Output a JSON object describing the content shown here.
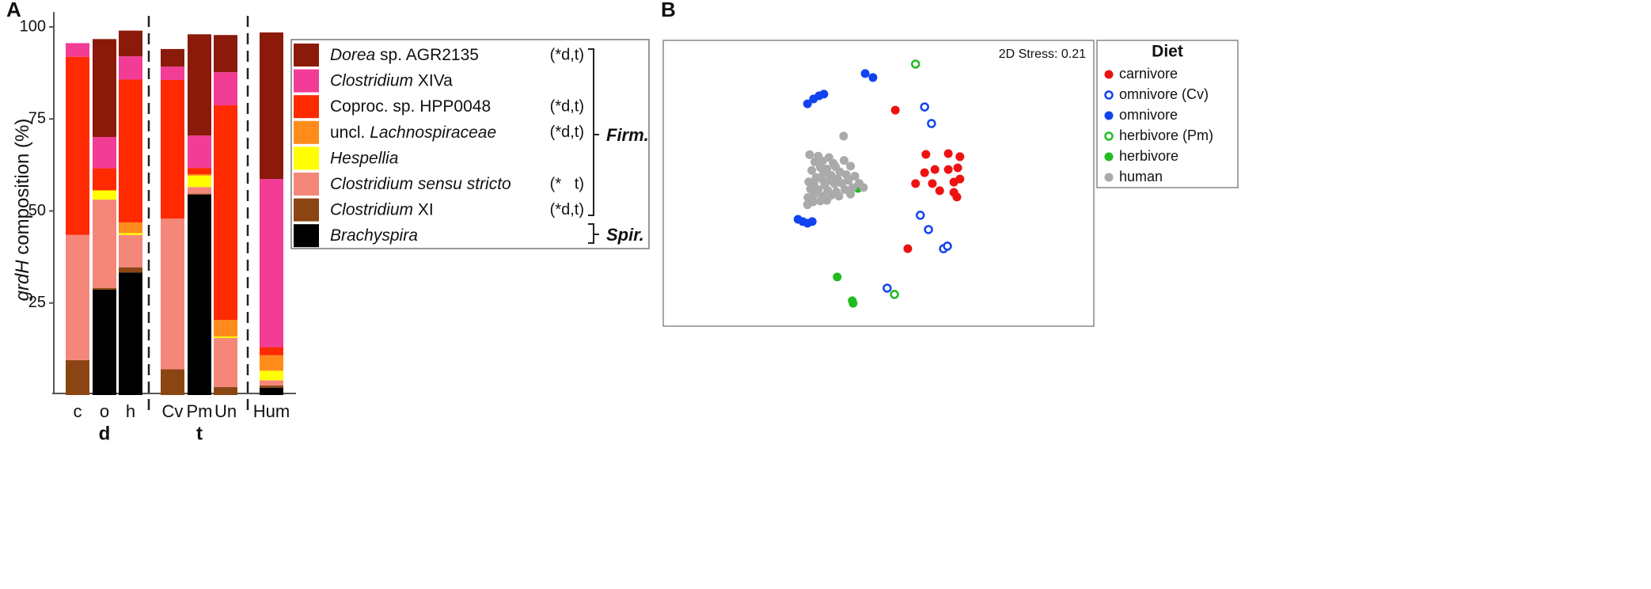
{
  "chart_data": [
    {
      "type": "bar",
      "stacked": true,
      "panel_label": "A",
      "y_label": "grdH composition (%)",
      "categories": [
        "c",
        "o",
        "h",
        "Cv",
        "Pm",
        "Un",
        "Hum"
      ],
      "group_labels": [
        "d",
        "t"
      ],
      "bracket_labels": [
        "Firm.",
        "Spir."
      ],
      "ylim": [
        0,
        104
      ],
      "yticks": [
        25,
        50,
        75,
        100
      ],
      "series": [
        {
          "name": "Dorea sp. AGR2135",
          "annotation": "(*d,t)",
          "color": "#8b1a0a",
          "values": [
            0,
            26.6,
            7,
            4.8,
            27.5,
            10.1,
            39.8
          ]
        },
        {
          "name": "Clostridium XIVa",
          "color": "#f23c96",
          "values": [
            3.7,
            8.5,
            6.3,
            3.6,
            8.8,
            9,
            45.7
          ]
        },
        {
          "name": "Coproc. sp. HPP0048",
          "annotation": "(*d,t)",
          "color": "#ff2a00",
          "values": [
            48.4,
            6,
            38.8,
            37.7,
            1.7,
            58.3,
            2.2
          ]
        },
        {
          "name": "uncl. Lachnospiraceae",
          "annotation": "(*d,t)",
          "color": "#ff8c1a",
          "values": [
            0,
            0,
            2.9,
            0,
            0.4,
            4.5,
            4.2
          ]
        },
        {
          "name": "Hespellia",
          "color": "#ffff00",
          "values": [
            0,
            2.5,
            0.5,
            0,
            3.1,
            0.4,
            2.6
          ]
        },
        {
          "name": "Clostridium sensu stricto",
          "annotation": "(*   t)",
          "color": "#f4877a",
          "values": [
            34,
            24,
            8.8,
            40.9,
            1.8,
            13.3,
            1.4
          ]
        },
        {
          "name": "Clostridium XI",
          "annotation": "(*d,t)",
          "color": "#8b4513",
          "values": [
            9.5,
            0.5,
            1.4,
            7,
            0.3,
            2.2,
            0.6
          ]
        },
        {
          "name": "Brachyspira",
          "color": "#000000",
          "values": [
            0,
            28.6,
            33.3,
            0,
            54.4,
            0,
            2
          ]
        }
      ]
    },
    {
      "type": "scatter",
      "panel_label": "B",
      "annotation": "2D Stress: 0.21",
      "legend_title": "Diet",
      "xlim": [
        0,
        100
      ],
      "ylim": [
        0,
        100
      ],
      "series": [
        {
          "name": "carnivore",
          "color": "#ee1111",
          "filled": true,
          "x": [
            53.9,
            61.0,
            66.2,
            68.9,
            63.1,
            60.7,
            58.6,
            62.5,
            64.2,
            67.5,
            68.9,
            67.5,
            68.2,
            66.2,
            68.4,
            56.8
          ],
          "y": [
            75.6,
            60.1,
            60.4,
            59.3,
            54.8,
            53.7,
            49.9,
            49.9,
            47.4,
            50.4,
            51.5,
            46.8,
            45.2,
            54.8,
            55.4,
            27.1
          ]
        },
        {
          "name": "omnivore (Cv)",
          "color": "#1144ee",
          "filled": false,
          "x": [
            60.7,
            62.3,
            59.7,
            61.6,
            65.1,
            66.0,
            52.0
          ],
          "y": [
            76.7,
            70.9,
            38.8,
            33.8,
            27.1,
            28.0,
            13.3
          ]
        },
        {
          "name": "omnivore",
          "color": "#1144ee",
          "filled": true,
          "x": [
            33.5,
            34.9,
            36.2,
            37.3,
            46.9,
            48.7,
            31.3,
            32.4,
            33.5,
            34.6,
            45.4
          ],
          "y": [
            77.8,
            79.5,
            80.6,
            81.2,
            88.4,
            87.0,
            37.4,
            36.6,
            36.0,
            36.6,
            49.0
          ]
        },
        {
          "name": "herbivore (Pm)",
          "color": "#22bb22",
          "filled": false,
          "x": [
            58.6,
            53.7
          ],
          "y": [
            91.7,
            11.1
          ]
        },
        {
          "name": "herbivore",
          "color": "#22bb22",
          "filled": true,
          "x": [
            40.4,
            43.9,
            44.1,
            45.2
          ],
          "y": [
            17.2,
            8.9,
            8.0,
            48.2
          ]
        },
        {
          "name": "human",
          "color": "#aaaaaa",
          "filled": true,
          "x": [
            41.9,
            34.0,
            36.0,
            38.5,
            35.2,
            37.0,
            39.5,
            42.0,
            36.5,
            38.0,
            40.0,
            43.5,
            34.5,
            41.0,
            37.2,
            39.0,
            42.5,
            44.5,
            35.5,
            36.8,
            38.5,
            40.5,
            33.8,
            35.0,
            37.5,
            39.8,
            41.5,
            43.0,
            45.5,
            46.5,
            44.0,
            34.2,
            36.0,
            38.2,
            40.2,
            42.2,
            35.0,
            37.0,
            39.0,
            43.5,
            33.6,
            34.8,
            36.5,
            33.5,
            38.0,
            40.8
          ],
          "y": [
            66.5,
            60.0,
            59.5,
            59.0,
            57.5,
            57.8,
            57.0,
            58.0,
            55.5,
            55.0,
            55.8,
            56.0,
            54.5,
            54.0,
            53.5,
            52.8,
            53.0,
            52.5,
            52.0,
            51.5,
            51.0,
            51.5,
            50.5,
            49.8,
            49.5,
            49.8,
            50.0,
            51.0,
            50.0,
            48.5,
            48.5,
            48.0,
            47.8,
            47.5,
            47.0,
            47.8,
            46.0,
            45.5,
            45.8,
            46.2,
            45.0,
            43.5,
            43.8,
            42.5,
            44.0,
            45.5
          ]
        }
      ]
    }
  ]
}
